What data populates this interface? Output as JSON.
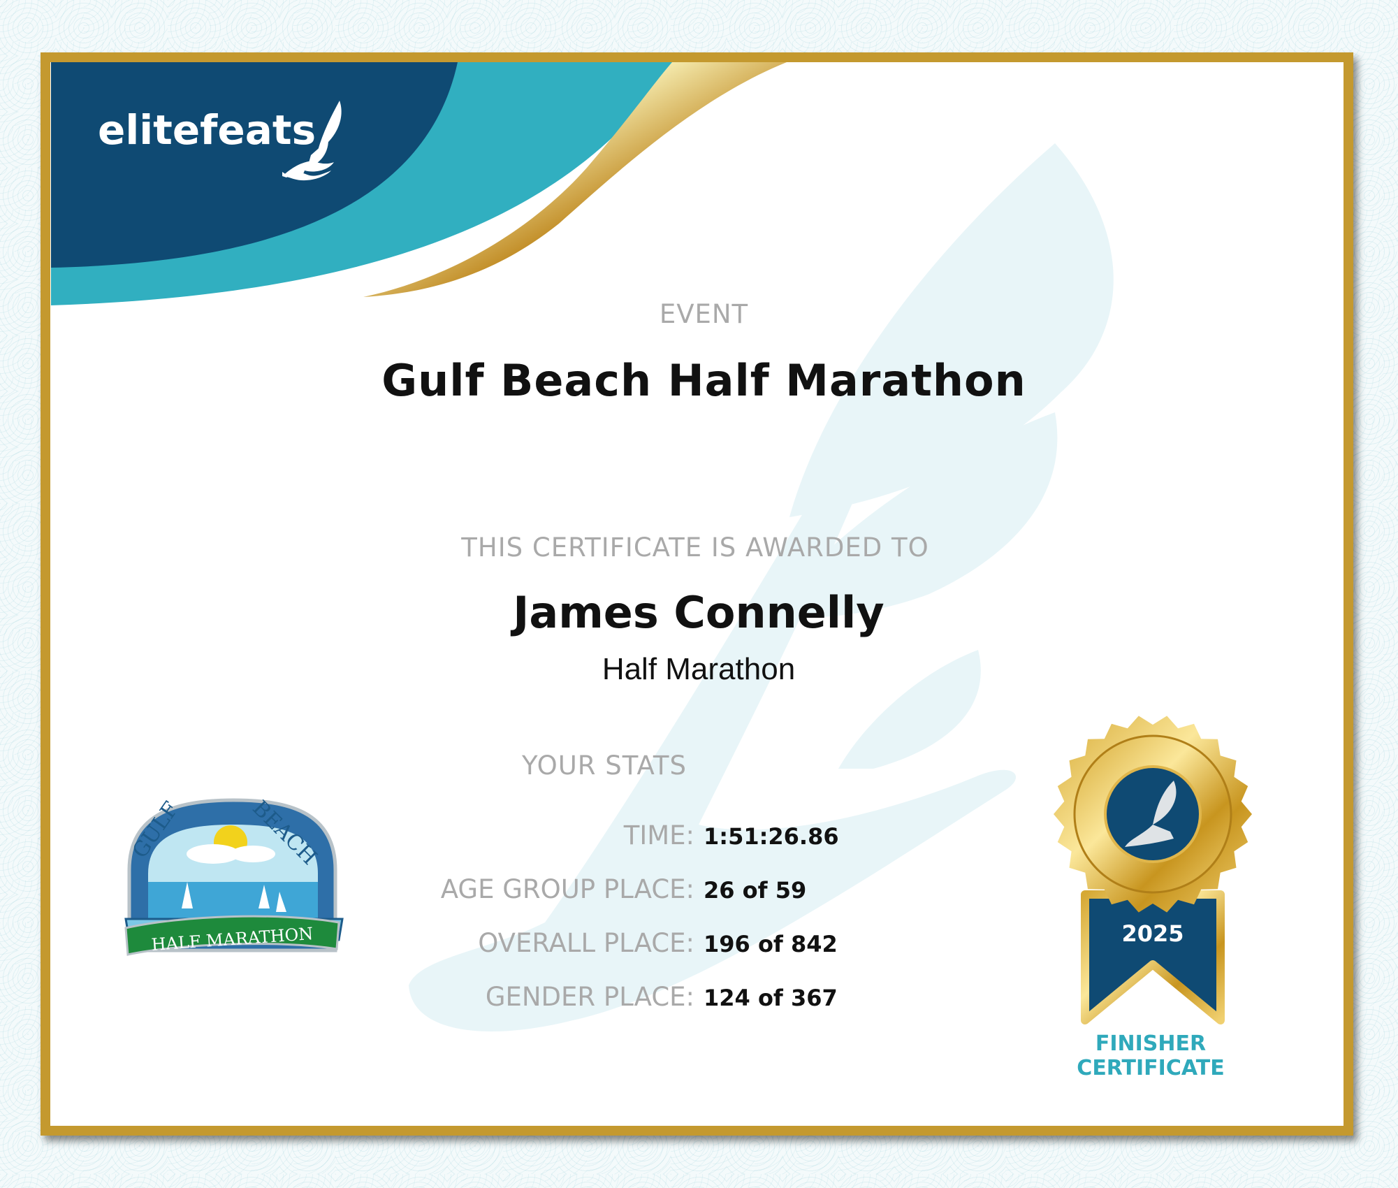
{
  "brand": {
    "name": "elitefeats",
    "navy": "#0f4a73",
    "teal": "#31afc0",
    "gold": "#c4992f"
  },
  "event": {
    "label": "EVENT",
    "title": "Gulf Beach Half Marathon"
  },
  "award": {
    "label": "THIS CERTIFICATE IS AWARDED TO",
    "name": "James Connelly",
    "distance": "Half Marathon"
  },
  "stats": {
    "label": "YOUR STATS",
    "rows": [
      {
        "key": "TIME:",
        "value": "1:51:26.86"
      },
      {
        "key": "AGE GROUP PLACE:",
        "value": "26 of 59"
      },
      {
        "key": "OVERALL PLACE:",
        "value": "196 of 842"
      },
      {
        "key": "GENDER PLACE:",
        "value": "124 of 367"
      }
    ]
  },
  "race_logo": {
    "arch_left": "GULF",
    "arch_right": "BEACH",
    "banner": "HALF MARATHON"
  },
  "badge": {
    "year": "2025",
    "line1": "FINISHER",
    "line2": "CERTIFICATE",
    "icon": "winged-foot-icon"
  }
}
